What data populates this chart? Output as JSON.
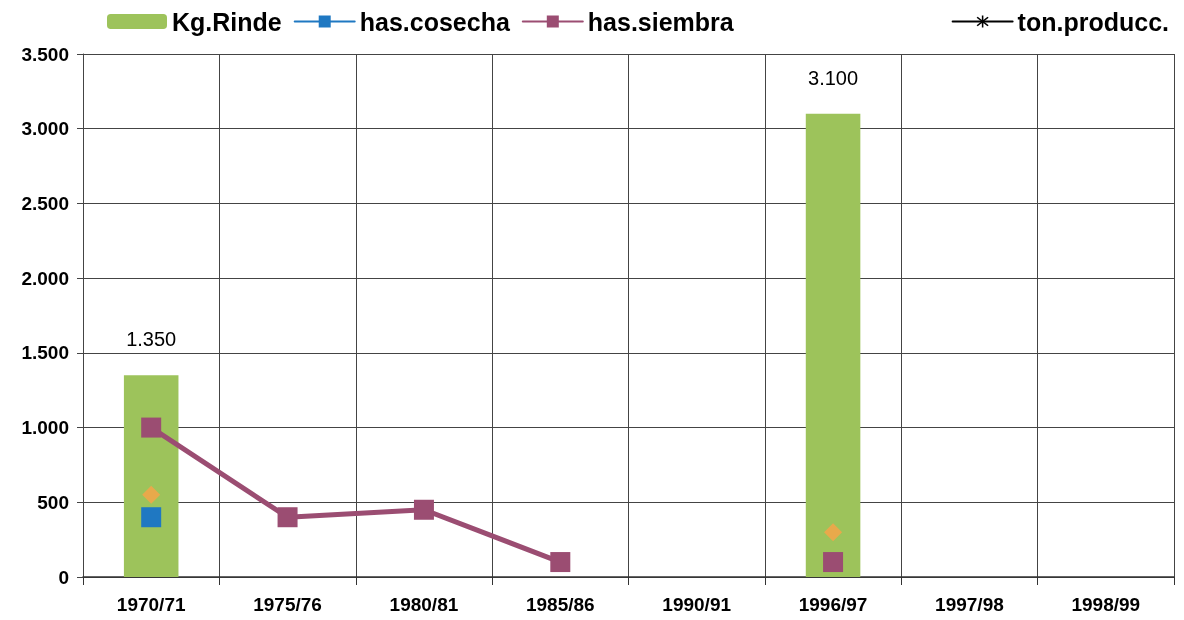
{
  "chart_data": {
    "type": "bar",
    "categories": [
      "1970/71",
      "1975/76",
      "1980/81",
      "1985/86",
      "1990/91",
      "1996/97",
      "1997/98",
      "1998/99"
    ],
    "series": [
      {
        "name": "Kg.Rinde",
        "color": "#9dc35b",
        "values": [
          1350,
          null,
          null,
          null,
          null,
          3100,
          null,
          null
        ],
        "value_labels": [
          "1.350",
          null,
          null,
          null,
          null,
          "3.100",
          null,
          null
        ]
      },
      {
        "name": "has.cosecha",
        "type": "line",
        "color": "#1f78c2",
        "marker": "square",
        "values": [
          400,
          null,
          null,
          null,
          null,
          null,
          null,
          null
        ]
      },
      {
        "name": "has.siembra",
        "type": "line",
        "color": "#9b4d72",
        "marker": "square",
        "values": [
          1000,
          400,
          450,
          100,
          null,
          100,
          null,
          null
        ]
      },
      {
        "name": "ton.producc.",
        "type": "line",
        "color": "#000000",
        "marker": "star",
        "values": [
          null,
          null,
          null,
          null,
          null,
          null,
          null,
          null
        ]
      },
      {
        "type": "scatter",
        "color": "#fba347",
        "marker": "diamond",
        "values": [
          550,
          null,
          null,
          null,
          null,
          300,
          null,
          null
        ]
      }
    ],
    "ylim": [
      0,
      3500
    ],
    "yticks": [
      0,
      500,
      {
        "value": 1000,
        "label": "1.000"
      },
      {
        "value": 1500,
        "label": "1.500"
      },
      {
        "value": 2000,
        "label": "2.000"
      },
      {
        "value": 2500,
        "label": "2.500"
      },
      {
        "value": 3000,
        "label": "3.000"
      },
      {
        "value": 3500,
        "label": "3.500"
      }
    ],
    "grid": true,
    "legend": "top"
  }
}
